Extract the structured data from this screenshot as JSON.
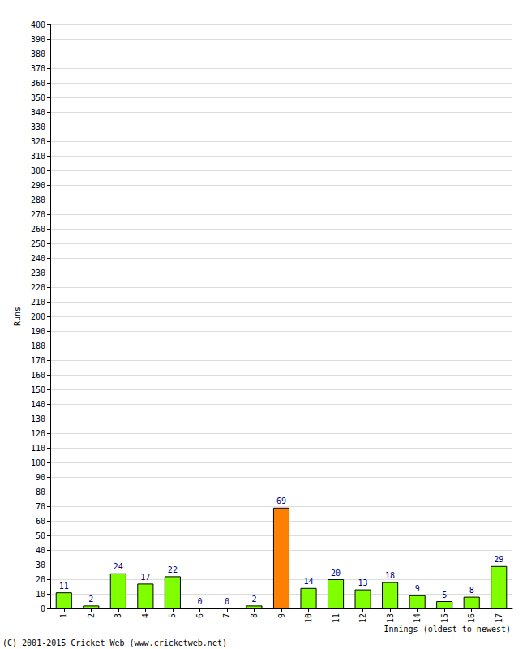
{
  "chart_data": {
    "type": "bar",
    "categories": [
      "1",
      "2",
      "3",
      "4",
      "5",
      "6",
      "7",
      "8",
      "9",
      "10",
      "11",
      "12",
      "13",
      "14",
      "15",
      "16",
      "17"
    ],
    "values": [
      11,
      2,
      24,
      17,
      22,
      0,
      0,
      2,
      69,
      14,
      20,
      13,
      18,
      9,
      5,
      8,
      29
    ],
    "colors": [
      "#80ff00",
      "#80ff00",
      "#80ff00",
      "#80ff00",
      "#80ff00",
      "#80ff00",
      "#80ff00",
      "#80ff00",
      "#ff8000",
      "#80ff00",
      "#80ff00",
      "#80ff00",
      "#80ff00",
      "#80ff00",
      "#80ff00",
      "#80ff00",
      "#80ff00"
    ],
    "y_label": "Runs",
    "x_label": "Innings (oldest to newest)",
    "annotation": "(C) 2001-2015 Cricket Web (www.cricketweb.net)",
    "ylim": [
      0,
      400
    ],
    "yticks": [
      0,
      10,
      20,
      30,
      40,
      50,
      60,
      70,
      80,
      90,
      100,
      110,
      120,
      130,
      140,
      150,
      160,
      170,
      180,
      190,
      200,
      210,
      220,
      230,
      240,
      250,
      260,
      270,
      280,
      290,
      300,
      310,
      320,
      330,
      340,
      350,
      360,
      370,
      380,
      390,
      400
    ],
    "grid": true,
    "data_labels": true
  }
}
